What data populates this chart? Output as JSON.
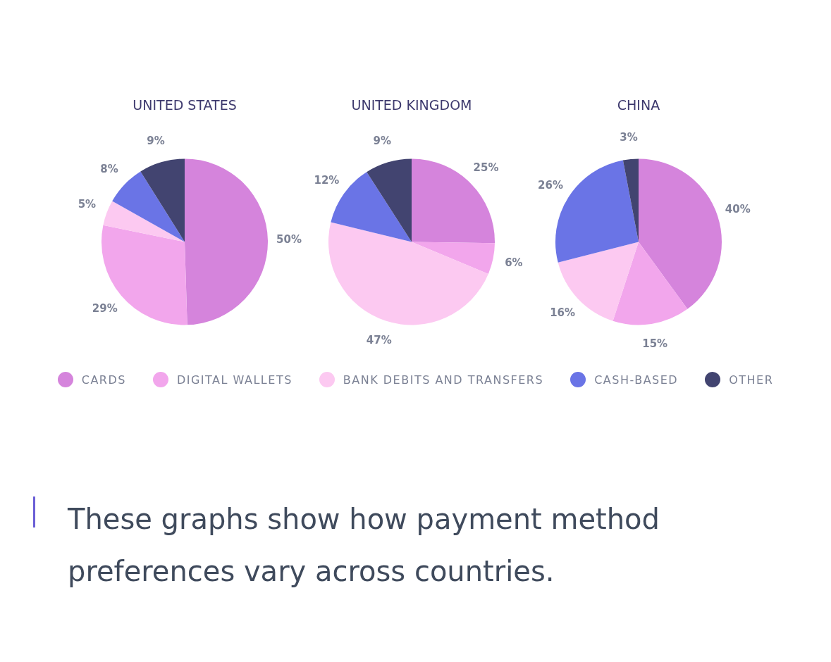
{
  "chart_data": [
    {
      "type": "pie",
      "title": "UNITED STATES",
      "categories": [
        "CARDS",
        "DIGITAL WALLETS",
        "BANK DEBITS AND TRANSFERS",
        "CASH-BASED",
        "OTHER"
      ],
      "values": [
        50,
        29,
        5,
        8,
        9
      ],
      "value_labels": [
        "50%",
        "29%",
        "5%",
        "8%",
        "9%"
      ],
      "colors": [
        "#d584dc",
        "#f2a6ec",
        "#fcc9f1",
        "#6a74e6",
        "#424470"
      ],
      "legend": "bottom",
      "annotations": [
        "These graphs show how payment method preferences vary across countries."
      ]
    },
    {
      "type": "pie",
      "title": "UNITED KINGDOM",
      "categories": [
        null,
        null,
        null,
        null,
        null
      ],
      "values": [
        25,
        6,
        47,
        12,
        9
      ],
      "value_labels": [
        "25%",
        "6%",
        "47%",
        "12%",
        "9%"
      ],
      "colors": [
        "#d584dc",
        "#f2a6ec",
        "#fcc9f1",
        "#6a74e6",
        "#424470"
      ]
    },
    {
      "type": "pie",
      "title": "CHINA",
      "categories": [
        null,
        null,
        null,
        null,
        null
      ],
      "values": [
        40,
        15,
        16,
        26,
        3
      ],
      "value_labels": [
        "40%",
        "15%",
        "16%",
        "26%",
        "3%"
      ],
      "colors": [
        "#d584dc",
        "#f2a6ec",
        "#fcc9f1",
        "#6a74e6",
        "#424470"
      ]
    }
  ]
}
